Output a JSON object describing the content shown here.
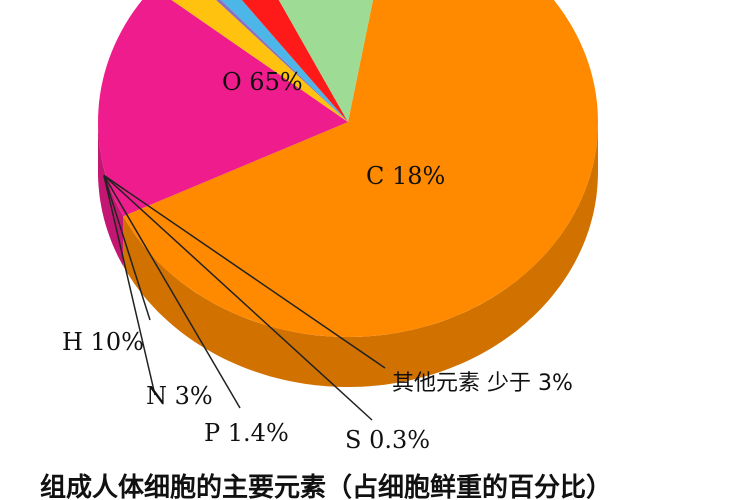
{
  "chart_data": {
    "type": "pie",
    "title": "组成人体细胞的主要元素（占细胞鲜重的百分比）",
    "slices": [
      {
        "label": "O",
        "display": "O 65%",
        "value": 65,
        "color": "#FF8A00"
      },
      {
        "label": "C",
        "display": "C 18%",
        "value": 18,
        "color": "#EE1C8C"
      },
      {
        "label": "其他元素 少于3%",
        "display": "其他元素 少于 3%",
        "value": 2.3,
        "color": "#FFC20E"
      },
      {
        "label": "S",
        "display": "S 0.3%",
        "value": 0.3,
        "color": "#8B6FC1"
      },
      {
        "label": "P",
        "display": "P 1.4%",
        "value": 1.4,
        "color": "#4DB6E8"
      },
      {
        "label": "N",
        "display": "N 3%",
        "value": 3,
        "color": "#FF1A1A"
      },
      {
        "label": "H",
        "display": "H 10%",
        "value": 10,
        "color": "#9EDC96"
      }
    ],
    "style": "3d-exploded-pie"
  }
}
